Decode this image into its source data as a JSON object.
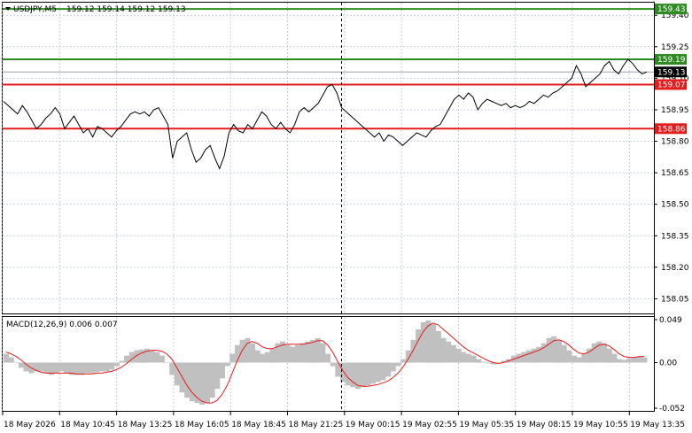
{
  "header": {
    "symbol": "USDJPY,M5",
    "ohlc": "159.12 159.14 159.12 159.13"
  },
  "macd_header": "MACD(12,26,9) 0.006 0.007",
  "colors": {
    "price_line": "#000000",
    "green_level": "#2e8b22",
    "red_level": "#e31c1c",
    "grid": "#c8d0dc",
    "hist": "#c0c0c0",
    "signal": "#e31c1c",
    "current_price_bg": "#000000"
  },
  "chart_data": [
    {
      "type": "line",
      "title": "USDJPY,M5",
      "ylim": [
        157.98,
        159.46
      ],
      "y_ticks": [
        159.4,
        159.25,
        159.1,
        158.95,
        158.8,
        158.65,
        158.5,
        158.35,
        158.2,
        158.05
      ],
      "x_ticks": [
        "18 May 2026",
        "18 May 10:45",
        "18 May 13:25",
        "18 May 16:05",
        "18 May 18:45",
        "18 May 21:25",
        "19 May 00:15",
        "19 May 02:55",
        "19 May 05:35",
        "19 May 08:15",
        "19 May 10:55",
        "19 May 13:35"
      ],
      "levels": [
        {
          "value": 159.43,
          "label": "159.43",
          "color": "green"
        },
        {
          "value": 159.19,
          "label": "159.19",
          "color": "green"
        },
        {
          "value": 159.07,
          "label": "159.07",
          "color": "red"
        },
        {
          "value": 158.86,
          "label": "158.86",
          "color": "red"
        }
      ],
      "current_price": {
        "value": 159.13,
        "label": "159.13"
      },
      "series": [
        {
          "values": [
            158.99,
            158.97,
            158.95,
            158.93,
            158.97,
            158.94,
            158.9,
            158.86,
            158.88,
            158.91,
            158.93,
            158.96,
            158.93,
            158.86,
            158.89,
            158.92,
            158.88,
            158.84,
            158.86,
            158.82,
            158.87,
            158.86,
            158.84,
            158.82,
            158.85,
            158.87,
            158.9,
            158.93,
            158.94,
            158.93,
            158.94,
            158.92,
            158.95,
            158.96,
            158.92,
            158.88,
            158.72,
            158.8,
            158.82,
            158.84,
            158.76,
            158.7,
            158.72,
            158.76,
            158.78,
            158.72,
            158.67,
            158.73,
            158.84,
            158.88,
            158.85,
            158.84,
            158.88,
            158.86,
            158.9,
            158.94,
            158.92,
            158.88,
            158.86,
            158.89,
            158.86,
            158.84,
            158.88,
            158.94,
            158.96,
            158.94,
            158.96,
            158.98,
            159.02,
            159.06,
            159.07,
            159.03,
            158.96,
            158.94,
            158.92,
            158.9,
            158.88,
            158.86,
            158.84,
            158.82,
            158.84,
            158.8,
            158.83,
            158.82,
            158.8,
            158.78,
            158.8,
            158.82,
            158.84,
            158.83,
            158.82,
            158.85,
            158.87,
            158.88,
            158.92,
            158.96,
            159.0,
            159.02,
            159.0,
            159.03,
            159.01,
            158.95,
            158.98,
            159.0,
            158.99,
            158.98,
            158.97,
            158.98,
            158.96,
            158.97,
            158.96,
            158.97,
            158.99,
            158.98,
            159.0,
            159.02,
            159.01,
            159.03,
            159.04,
            159.06,
            159.08,
            159.1,
            159.16,
            159.12,
            159.06,
            159.08,
            159.1,
            159.12,
            159.16,
            159.18,
            159.14,
            159.12,
            159.16,
            159.19,
            159.17,
            159.14,
            159.12,
            159.13
          ]
        }
      ]
    },
    {
      "type": "bar",
      "title": "MACD(12,26,9) 0.006 0.007",
      "ylim": [
        -0.055,
        0.052
      ],
      "y_ticks": [
        0.049,
        0.0,
        -0.052
      ],
      "series": [
        {
          "name": "MACD",
          "values": [
            0.01,
            0.006,
            0.0,
            -0.006,
            -0.01,
            -0.012,
            -0.01,
            -0.01,
            -0.012,
            -0.014,
            -0.012,
            -0.01,
            -0.012,
            -0.014,
            -0.014,
            -0.014,
            -0.012,
            -0.012,
            -0.011,
            -0.01,
            -0.01,
            -0.008,
            -0.004,
            0.002,
            0.008,
            0.012,
            0.014,
            0.015,
            0.016,
            0.014,
            0.012,
            0.008,
            0.0,
            -0.014,
            -0.026,
            -0.034,
            -0.04,
            -0.044,
            -0.046,
            -0.048,
            -0.046,
            -0.04,
            -0.03,
            -0.018,
            -0.004,
            0.01,
            0.02,
            0.026,
            0.028,
            0.022,
            0.014,
            0.01,
            0.012,
            0.016,
            0.022,
            0.024,
            0.02,
            0.018,
            0.02,
            0.022,
            0.024,
            0.026,
            0.028,
            0.022,
            0.01,
            -0.004,
            -0.016,
            -0.022,
            -0.026,
            -0.028,
            -0.03,
            -0.028,
            -0.026,
            -0.024,
            -0.022,
            -0.02,
            -0.016,
            -0.01,
            -0.004,
            0.004,
            0.014,
            0.026,
            0.038,
            0.046,
            0.048,
            0.044,
            0.036,
            0.028,
            0.024,
            0.02,
            0.016,
            0.012,
            0.01,
            0.008,
            0.004,
            0.001,
            -0.001,
            -0.002,
            0.0,
            0.002,
            0.004,
            0.008,
            0.01,
            0.012,
            0.014,
            0.016,
            0.018,
            0.022,
            0.028,
            0.03,
            0.026,
            0.02,
            0.014,
            0.008,
            0.006,
            0.01,
            0.016,
            0.022,
            0.024,
            0.022,
            0.016,
            0.01,
            0.004,
            0.003,
            0.005,
            0.006,
            0.007,
            0.006
          ]
        },
        {
          "name": "Signal",
          "values": [
            0.012,
            0.01,
            0.007,
            0.003,
            -0.002,
            -0.006,
            -0.009,
            -0.011,
            -0.012,
            -0.012,
            -0.012,
            -0.012,
            -0.012,
            -0.012,
            -0.013,
            -0.013,
            -0.013,
            -0.013,
            -0.012,
            -0.012,
            -0.011,
            -0.01,
            -0.008,
            -0.005,
            -0.001,
            0.004,
            0.008,
            0.011,
            0.013,
            0.014,
            0.014,
            0.013,
            0.01,
            0.004,
            -0.006,
            -0.016,
            -0.026,
            -0.034,
            -0.04,
            -0.044,
            -0.046,
            -0.046,
            -0.043,
            -0.036,
            -0.026,
            -0.012,
            0.002,
            0.014,
            0.022,
            0.024,
            0.022,
            0.018,
            0.016,
            0.016,
            0.018,
            0.02,
            0.021,
            0.021,
            0.021,
            0.021,
            0.022,
            0.023,
            0.025,
            0.025,
            0.02,
            0.012,
            0.001,
            -0.009,
            -0.017,
            -0.022,
            -0.026,
            -0.027,
            -0.027,
            -0.026,
            -0.025,
            -0.023,
            -0.021,
            -0.017,
            -0.012,
            -0.005,
            0.004,
            0.014,
            0.025,
            0.035,
            0.042,
            0.045,
            0.043,
            0.038,
            0.033,
            0.028,
            0.023,
            0.018,
            0.014,
            0.011,
            0.008,
            0.005,
            0.002,
            0.0,
            -0.001,
            0.0,
            0.002,
            0.004,
            0.006,
            0.008,
            0.01,
            0.012,
            0.014,
            0.017,
            0.021,
            0.025,
            0.026,
            0.024,
            0.02,
            0.015,
            0.011,
            0.01,
            0.012,
            0.016,
            0.02,
            0.021,
            0.019,
            0.015,
            0.01,
            0.007,
            0.006,
            0.006,
            0.007,
            0.007
          ]
        }
      ]
    }
  ]
}
